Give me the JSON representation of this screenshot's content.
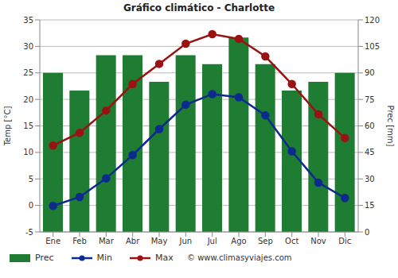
{
  "chart_data": {
    "type": "bar",
    "title": "Gráfico climático - Charlotte",
    "y_label": "Temp [°C]",
    "y2_label": "Prec [mm]",
    "annotations": [
      "© www.climasyviajes.com"
    ],
    "categories": [
      "Ene",
      "Feb",
      "Mar",
      "Abr",
      "May",
      "Jun",
      "Jul",
      "Ago",
      "Sep",
      "Oct",
      "Nov",
      "Dic"
    ],
    "series": [
      {
        "name": "Prec",
        "type": "bar",
        "axis": "y2",
        "color": "#1e7d32",
        "values": [
          90,
          80,
          100,
          100,
          85,
          100,
          95,
          110,
          95,
          80,
          85,
          90
        ]
      },
      {
        "name": "Min",
        "type": "line",
        "axis": "y",
        "color": "#0d2a8e",
        "marker": "circle",
        "line_style": "solid",
        "values": [
          -0.1,
          1.6,
          5.1,
          9.5,
          14.4,
          19,
          21,
          20.4,
          17,
          10.2,
          4.3,
          1.4
        ]
      },
      {
        "name": "Max",
        "type": "line",
        "axis": "y",
        "color": "#9a1212",
        "marker": "circle",
        "line_style": "solid",
        "values": [
          11.3,
          13.7,
          17.9,
          22.9,
          26.7,
          30.5,
          32.3,
          31.4,
          28.1,
          22.9,
          17.2,
          12.7
        ]
      }
    ],
    "ylim": [
      -5,
      35
    ],
    "yticks": [
      -5,
      0,
      5,
      10,
      15,
      20,
      25,
      30,
      35
    ],
    "y2lim": [
      0,
      120
    ],
    "y2ticks": [
      0,
      15,
      30,
      45,
      60,
      75,
      90,
      105,
      120
    ],
    "grid": true,
    "legend": "bottom"
  }
}
